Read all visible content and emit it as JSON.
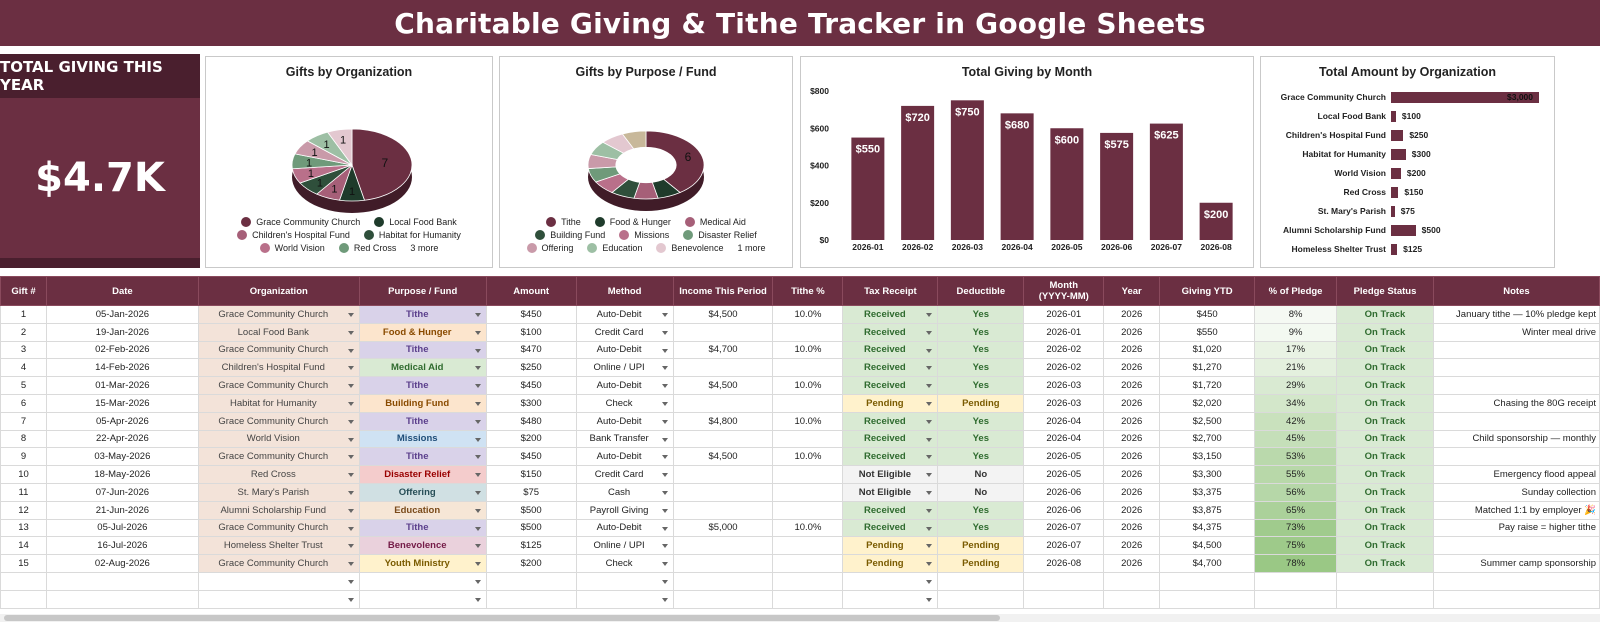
{
  "title": "Charitable Giving & Tithe Tracker in Google Sheets",
  "kpi": {
    "label": "TOTAL GIVING THIS YEAR",
    "value": "$4.7K"
  },
  "colors": {
    "brand": "#6b2f42",
    "brand_dark": "#4a1f2e"
  },
  "chart_data": [
    {
      "type": "pie",
      "title": "Gifts by Organization",
      "slices": [
        {
          "label": "Grace Community Church",
          "value": 7,
          "color": "#6b2f42"
        },
        {
          "label": "Local Food Bank",
          "value": 1,
          "color": "#1f3b2b"
        },
        {
          "label": "Children's Hospital Fund",
          "value": 1,
          "color": "#a65f78"
        },
        {
          "label": "Habitat for Humanity",
          "value": 1,
          "color": "#2f4f3b"
        },
        {
          "label": "World Vision",
          "value": 1,
          "color": "#b9708a"
        },
        {
          "label": "Red Cross",
          "value": 1,
          "color": "#6f9a7a"
        },
        {
          "label": "St. Mary's Parish",
          "value": 1,
          "color": "#c99aa9"
        },
        {
          "label": "Alumni Scholarship Fund",
          "value": 1,
          "color": "#9dbfa4"
        },
        {
          "label": "Homeless Shelter Trust",
          "value": 1,
          "color": "#e3c8d0"
        }
      ],
      "slice_labels": [
        "7",
        "1",
        "1",
        "1",
        "1",
        "1",
        "1",
        "1",
        "1"
      ],
      "legend": [
        "Grace Community Church",
        "Local Food Bank",
        "Children's Hospital Fund",
        "Habitat for Humanity",
        "World Vision",
        "Red Cross"
      ],
      "legend_more": "3 more"
    },
    {
      "type": "pie",
      "title": "Gifts by Purpose / Fund",
      "slices": [
        {
          "label": "Tithe",
          "value": 6,
          "color": "#6b2f42"
        },
        {
          "label": "Food & Hunger",
          "value": 1,
          "color": "#1f3b2b"
        },
        {
          "label": "Medical Aid",
          "value": 1,
          "color": "#a65f78"
        },
        {
          "label": "Building Fund",
          "value": 1,
          "color": "#2f4f3b"
        },
        {
          "label": "Missions",
          "value": 1,
          "color": "#b9708a"
        },
        {
          "label": "Disaster Relief",
          "value": 1,
          "color": "#6f9a7a"
        },
        {
          "label": "Offering",
          "value": 1,
          "color": "#c99aa9"
        },
        {
          "label": "Education",
          "value": 1,
          "color": "#9dbfa4"
        },
        {
          "label": "Benevolence",
          "value": 1,
          "color": "#e3c8d0"
        },
        {
          "label": "Youth Ministry",
          "value": 1,
          "color": "#c8b89a"
        }
      ],
      "slice_labels": [
        "6"
      ],
      "legend": [
        "Tithe",
        "Food & Hunger",
        "Medical Aid",
        "Building Fund",
        "Missions",
        "Disaster Relief",
        "Offering",
        "Education",
        "Benevolence"
      ],
      "legend_more": "1 more"
    },
    {
      "type": "bar",
      "title": "Total Giving by Month",
      "categories": [
        "2026-01",
        "2026-02",
        "2026-03",
        "2026-04",
        "2026-05",
        "2026-06",
        "2026-07",
        "2026-08"
      ],
      "values": [
        550,
        720,
        750,
        680,
        600,
        575,
        625,
        200
      ],
      "data_labels": [
        "$550",
        "$720",
        "$750",
        "$680",
        "$600",
        "$575",
        "$625",
        "$200"
      ],
      "yticks": [
        "$0",
        "$200",
        "$400",
        "$600",
        "$800"
      ],
      "ylim": [
        0,
        800
      ]
    },
    {
      "type": "bar",
      "orientation": "horizontal",
      "title": "Total Amount by Organization",
      "categories": [
        "Grace Community Church",
        "Local Food Bank",
        "Children's Hospital Fund",
        "Habitat for Humanity",
        "World Vision",
        "Red Cross",
        "St. Mary's Parish",
        "Alumni Scholarship Fund",
        "Homeless Shelter Trust"
      ],
      "values": [
        3000,
        100,
        250,
        300,
        200,
        150,
        75,
        500,
        125
      ],
      "data_labels": [
        "$3,000",
        "$100",
        "$250",
        "$300",
        "$200",
        "$150",
        "$75",
        "$500",
        "$125"
      ],
      "xlim": [
        0,
        3000
      ]
    }
  ],
  "table": {
    "headers": [
      "Gift #",
      "Date",
      "Organization",
      "Purpose / Fund",
      "Amount",
      "Method",
      "Income This Period",
      "Tithe %",
      "Tax Receipt",
      "Deductible",
      "Month\n(YYYY-MM)",
      "Year",
      "Giving YTD",
      "% of Pledge",
      "Pledge Status",
      "Notes"
    ],
    "rows": [
      [
        "1",
        "05-Jan-2026",
        "Grace Community Church",
        "Tithe",
        "$450",
        "Auto-Debit",
        "$4,500",
        "10.0%",
        "Received",
        "Yes",
        "2026-01",
        "2026",
        "$450",
        "8%",
        "On Track",
        "January tithe — 10% pledge kept"
      ],
      [
        "2",
        "19-Jan-2026",
        "Local Food Bank",
        "Food & Hunger",
        "$100",
        "Credit Card",
        "",
        "",
        "Received",
        "Yes",
        "2026-01",
        "2026",
        "$550",
        "9%",
        "On Track",
        "Winter meal drive"
      ],
      [
        "3",
        "02-Feb-2026",
        "Grace Community Church",
        "Tithe",
        "$470",
        "Auto-Debit",
        "$4,700",
        "10.0%",
        "Received",
        "Yes",
        "2026-02",
        "2026",
        "$1,020",
        "17%",
        "On Track",
        ""
      ],
      [
        "4",
        "14-Feb-2026",
        "Children's Hospital Fund",
        "Medical Aid",
        "$250",
        "Online / UPI",
        "",
        "",
        "Received",
        "Yes",
        "2026-02",
        "2026",
        "$1,270",
        "21%",
        "On Track",
        ""
      ],
      [
        "5",
        "01-Mar-2026",
        "Grace Community Church",
        "Tithe",
        "$450",
        "Auto-Debit",
        "$4,500",
        "10.0%",
        "Received",
        "Yes",
        "2026-03",
        "2026",
        "$1,720",
        "29%",
        "On Track",
        ""
      ],
      [
        "6",
        "15-Mar-2026",
        "Habitat for Humanity",
        "Building Fund",
        "$300",
        "Check",
        "",
        "",
        "Pending",
        "Pending",
        "2026-03",
        "2026",
        "$2,020",
        "34%",
        "On Track",
        "Chasing the 80G receipt"
      ],
      [
        "7",
        "05-Apr-2026",
        "Grace Community Church",
        "Tithe",
        "$480",
        "Auto-Debit",
        "$4,800",
        "10.0%",
        "Received",
        "Yes",
        "2026-04",
        "2026",
        "$2,500",
        "42%",
        "On Track",
        ""
      ],
      [
        "8",
        "22-Apr-2026",
        "World Vision",
        "Missions",
        "$200",
        "Bank Transfer",
        "",
        "",
        "Received",
        "Yes",
        "2026-04",
        "2026",
        "$2,700",
        "45%",
        "On Track",
        "Child sponsorship — monthly"
      ],
      [
        "9",
        "03-May-2026",
        "Grace Community Church",
        "Tithe",
        "$450",
        "Auto-Debit",
        "$4,500",
        "10.0%",
        "Received",
        "Yes",
        "2026-05",
        "2026",
        "$3,150",
        "53%",
        "On Track",
        ""
      ],
      [
        "10",
        "18-May-2026",
        "Red Cross",
        "Disaster Relief",
        "$150",
        "Credit Card",
        "",
        "",
        "Not Eligible",
        "No",
        "2026-05",
        "2026",
        "$3,300",
        "55%",
        "On Track",
        "Emergency flood appeal"
      ],
      [
        "11",
        "07-Jun-2026",
        "St. Mary's Parish",
        "Offering",
        "$75",
        "Cash",
        "",
        "",
        "Not Eligible",
        "No",
        "2026-06",
        "2026",
        "$3,375",
        "56%",
        "On Track",
        "Sunday collection"
      ],
      [
        "12",
        "21-Jun-2026",
        "Alumni Scholarship Fund",
        "Education",
        "$500",
        "Payroll Giving",
        "",
        "",
        "Received",
        "Yes",
        "2026-06",
        "2026",
        "$3,875",
        "65%",
        "On Track",
        "Matched 1:1 by employer 🎉"
      ],
      [
        "13",
        "05-Jul-2026",
        "Grace Community Church",
        "Tithe",
        "$500",
        "Auto-Debit",
        "$5,000",
        "10.0%",
        "Received",
        "Yes",
        "2026-07",
        "2026",
        "$4,375",
        "73%",
        "On Track",
        "Pay raise = higher tithe"
      ],
      [
        "14",
        "16-Jul-2026",
        "Homeless Shelter Trust",
        "Benevolence",
        "$125",
        "Online / UPI",
        "",
        "",
        "Pending",
        "Pending",
        "2026-07",
        "2026",
        "$4,500",
        "75%",
        "On Track",
        ""
      ],
      [
        "15",
        "02-Aug-2026",
        "Grace Community Church",
        "Youth Ministry",
        "$200",
        "Check",
        "",
        "",
        "Pending",
        "Pending",
        "2026-08",
        "2026",
        "$4,700",
        "78%",
        "On Track",
        "Summer camp sponsorship"
      ]
    ],
    "pledge_pct": [
      8,
      9,
      17,
      21,
      29,
      34,
      42,
      45,
      53,
      55,
      56,
      65,
      73,
      75,
      78
    ],
    "purpose_colors": {
      "Tithe": {
        "bg": "#d9d2e9",
        "fg": "#5b3f8c"
      },
      "Food & Hunger": {
        "bg": "#fce5cd",
        "fg": "#8a4b00"
      },
      "Medical Aid": {
        "bg": "#d9ead3",
        "fg": "#2f6b2f"
      },
      "Building Fund": {
        "bg": "#fce5cd",
        "fg": "#8a4b00"
      },
      "Missions": {
        "bg": "#cfe2f3",
        "fg": "#1f4e79"
      },
      "Disaster Relief": {
        "bg": "#f4cccc",
        "fg": "#990000"
      },
      "Offering": {
        "bg": "#d0e0e3",
        "fg": "#274e57"
      },
      "Education": {
        "bg": "#f6e6d6",
        "fg": "#7a4a1a"
      },
      "Benevolence": {
        "bg": "#ead1dc",
        "fg": "#741b47"
      },
      "Youth Ministry": {
        "bg": "#fff2cc",
        "fg": "#7a5b00"
      }
    }
  }
}
